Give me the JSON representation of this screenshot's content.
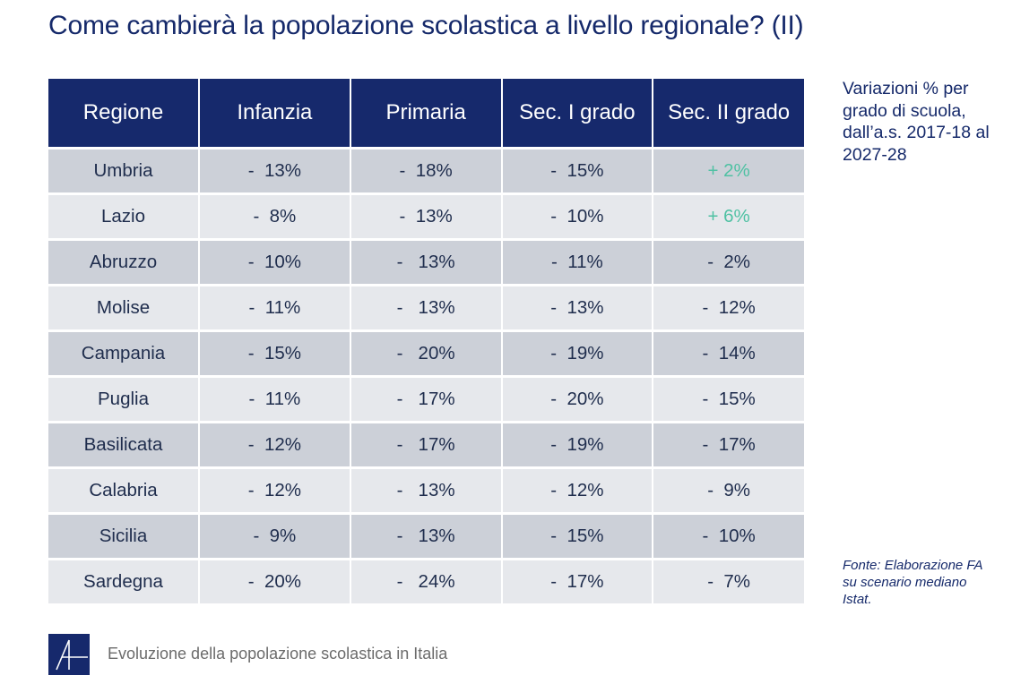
{
  "title": "Come cambierà la popolazione scolastica a livello regionale? (II)",
  "table": {
    "headers": [
      "Regione",
      "Infanzia",
      "Primaria",
      "Sec. I grado",
      "Sec. II grado"
    ],
    "rows": [
      [
        "Umbria",
        "-  13%",
        "-  18%",
        "-  15%",
        "+ 2%"
      ],
      [
        "Lazio",
        "-  8%",
        "-  13%",
        "-  10%",
        "+ 6%"
      ],
      [
        "Abruzzo",
        "-  10%",
        "-   13%",
        "-  11%",
        "-  2%"
      ],
      [
        "Molise",
        "-  11%",
        "-   13%",
        "-  13%",
        "-  12%"
      ],
      [
        "Campania",
        "-  15%",
        "-   20%",
        "-  19%",
        "-  14%"
      ],
      [
        "Puglia",
        "-  11%",
        "-   17%",
        "-  20%",
        "-  15%"
      ],
      [
        "Basilicata",
        "-  12%",
        "-   17%",
        "-  19%",
        "-  17%"
      ],
      [
        "Calabria",
        "-  12%",
        "-   13%",
        "-  12%",
        "-  9%"
      ],
      [
        "Sicilia",
        "-  9%",
        "-   13%",
        "-  15%",
        "-  10%"
      ],
      [
        "Sardegna",
        "-  20%",
        "-   24%",
        "-  17%",
        "-  7%"
      ]
    ],
    "positive_color": "#4fc1a3",
    "header_color": "#16296c"
  },
  "side_note": "Variazioni % per grado di scuola, dall’a.s. 2017-18 al 2027-28",
  "source": "Fonte: Elaborazione FA su scenario mediano Istat.",
  "footer": {
    "logo_icon": "a-monogram-logo",
    "text": "Evoluzione della popolazione scolastica in Italia"
  }
}
